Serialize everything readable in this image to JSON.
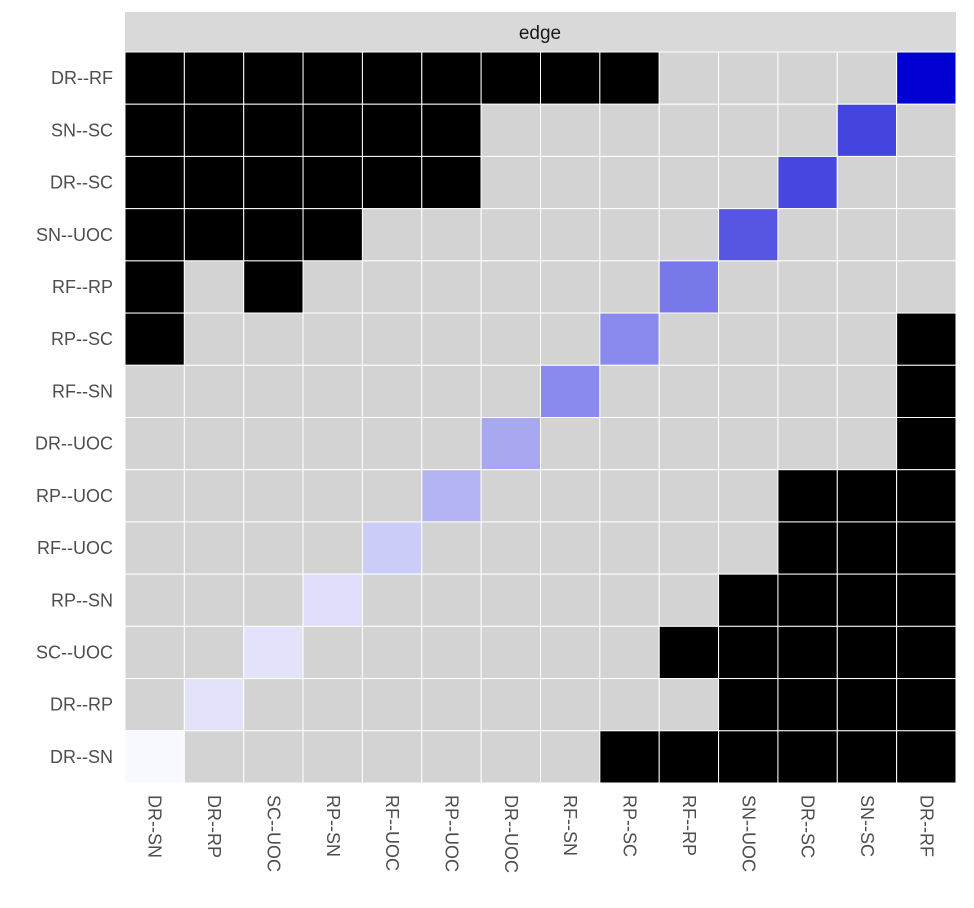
{
  "chart_data": {
    "type": "heatmap",
    "facet_label": "edge",
    "rows": [
      "DR--RF",
      "SN--SC",
      "DR--SC",
      "SN--UOC",
      "RF--RP",
      "RP--SC",
      "RF--SN",
      "DR--UOC",
      "RP--UOC",
      "RF--UOC",
      "RP--SN",
      "SC--UOC",
      "DR--RP",
      "DR--SN"
    ],
    "columns": [
      "DR--SN",
      "DR--RP",
      "SC--UOC",
      "RP--SN",
      "RF--UOC",
      "RP--UOC",
      "DR--UOC",
      "RF--SN",
      "RP--SC",
      "RF--RP",
      "SN--UOC",
      "DR--SC",
      "SN--SC",
      "DR--RF"
    ],
    "cell_key": {
      "B": "black cell",
      "G": "grey cell",
      "D": "diagonal blue-scale cell"
    },
    "matrix": [
      "BBBBBBBBBGGGGD",
      "BBBBBBGGGGGGDG",
      "BBBBBBGGGGGDGG",
      "BBBBGGGGGGDGGG",
      "BGBGGGGGGDGGGG",
      "BGGGGGGGDGGGGB",
      "GGGGGGGDGGGGGB",
      "GGGGGGDGGGGGGB",
      "GGGGGDGGGGGBBB",
      "GGGGDGGGGGGBBB",
      "GGGDGGGGGGBBBB",
      "GGDGGGGGGBBBBB",
      "GDGGGGGGGGBBBB",
      "DGGGGGGGBBBBBB"
    ],
    "diagonal_colors": [
      "#f8f8ff",
      "#e2e2fb",
      "#e2e2fb",
      "#dedefa",
      "#ccccf8",
      "#b4b4f3",
      "#a8a8f0",
      "#8a8aee",
      "#8a8aee",
      "#7878ea",
      "#5656e2",
      "#4646e0",
      "#4444df",
      "#0000d3"
    ],
    "colors": {
      "black": "#000000",
      "grey": "#d3d3d3",
      "grid": "#ffffff",
      "strip": "#d9d9d9"
    }
  }
}
